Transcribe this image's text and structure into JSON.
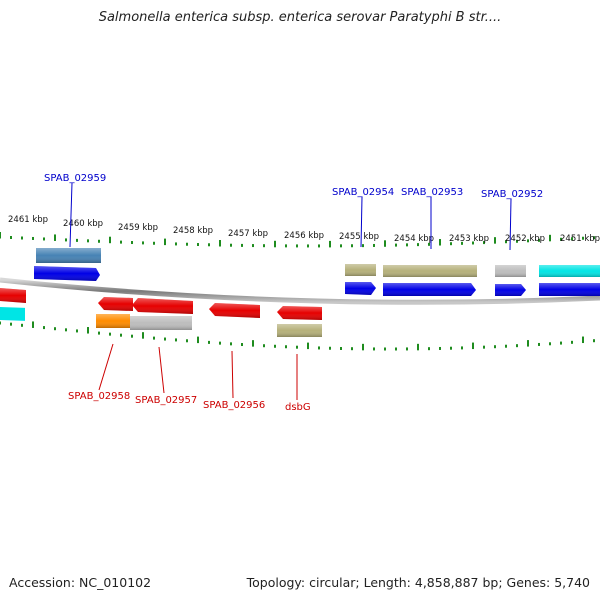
{
  "title": "Salmonella enterica subsp. enterica serovar Paratyphi B str....",
  "footer": {
    "accession": "Accession: NC_010102",
    "summary": "Topology: circular; Length: 4,858,887 bp; Genes: 5,740"
  },
  "ruler": {
    "labels": [
      "2461 kbp",
      "2460 kbp",
      "2459 kbp",
      "2458 kbp",
      "2457 kbp",
      "2456 kbp",
      "2455 kbp",
      "2454 kbp",
      "2453 kbp",
      "2452 kbp",
      "2451 kbp"
    ],
    "tick_color": "#1e8c1e"
  },
  "gene_labels": [
    {
      "name": "SPAB_02959",
      "strand": "top",
      "color": "#0000cc"
    },
    {
      "name": "SPAB_02954",
      "strand": "top",
      "color": "#0000cc"
    },
    {
      "name": "SPAB_02953",
      "strand": "top",
      "color": "#0000cc"
    },
    {
      "name": "SPAB_02952",
      "strand": "top",
      "color": "#0000cc"
    },
    {
      "name": "SPAB_02958",
      "strand": "bottom",
      "color": "#cc0000"
    },
    {
      "name": "SPAB_02957",
      "strand": "bottom",
      "color": "#cc0000"
    },
    {
      "name": "SPAB_02956",
      "strand": "bottom",
      "color": "#cc0000"
    },
    {
      "name": "dsbG",
      "strand": "bottom",
      "color": "#cc0000"
    }
  ],
  "feature_colors": {
    "cds_forward": "#0000e6",
    "cds_reverse": "#e60000",
    "cog_blue": "#4682b4",
    "cog_olive": "#b5b07a",
    "cog_gray": "#bdbdbd",
    "cog_cyan": "#00e5e5",
    "cog_orange": "#ff8c00",
    "backbone": "#8c8c8c"
  }
}
